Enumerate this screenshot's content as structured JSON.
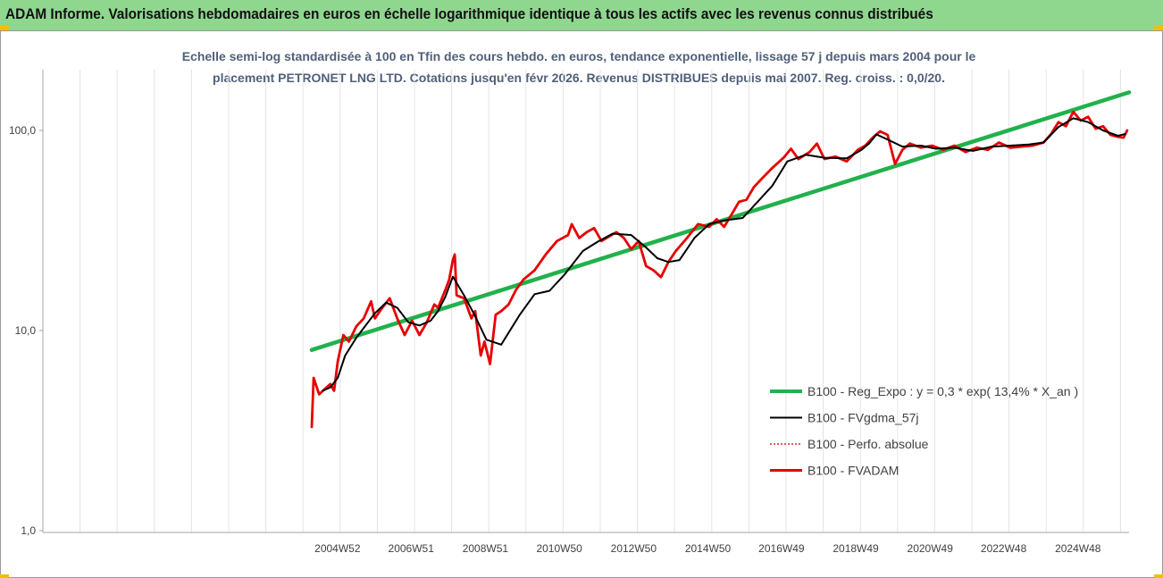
{
  "banner": {
    "title": "ADAM Informe. Valorisations hebdomadaires en euros en échelle logarithmique identique à tous les actifs avec les revenus connus distribués"
  },
  "colors": {
    "banner_bg": "#8fd68f",
    "regression": "#22b14c",
    "fvgdma": "#000000",
    "perfo": "#c00000",
    "fvadam": "#e60000",
    "subtitle": "#50607a"
  },
  "chart_data": {
    "type": "line",
    "title_line1": "Echelle semi-log standardisée à 100 en Tfin des cours hebdo. en euros, tendance exponentielle, lissage 57 j depuis mars 2004 pour le",
    "title_line2": "placement PETRONET LNG LTD. Cotations jusqu'en févr 2026.  Revenus DISTRIBUES depuis mai 2007. Reg. croiss. : 0,0/20.",
    "y_scale": "log",
    "ylim": [
      1,
      200
    ],
    "xlim": [
      2000.0,
      2026.2
    ],
    "y_ticks": [
      {
        "label": "1,0",
        "value": 1
      },
      {
        "label": "10,0",
        "value": 10
      },
      {
        "label": "100,0",
        "value": 100
      }
    ],
    "x_ticks": [
      {
        "label": "2004W52",
        "value": 2004.99
      },
      {
        "label": "2006W51",
        "value": 2006.97
      },
      {
        "label": "2008W51",
        "value": 2008.97
      },
      {
        "label": "2010W50",
        "value": 2010.96
      },
      {
        "label": "2012W50",
        "value": 2012.96
      },
      {
        "label": "2014W50",
        "value": 2014.96
      },
      {
        "label": "2016W49",
        "value": 2016.94
      },
      {
        "label": "2018W49",
        "value": 2018.94
      },
      {
        "label": "2020W49",
        "value": 2020.94
      },
      {
        "label": "2022W48",
        "value": 2022.92
      },
      {
        "label": "2024W48",
        "value": 2024.92
      }
    ],
    "grid": "vertical",
    "legend_position": "right-center",
    "series": [
      {
        "name": "B100 - Reg_Expo : y = 0,3 * exp( 13,4% *  X_an )",
        "key": "regression",
        "x": [
          2004.2,
          2026.2
        ],
        "y": [
          8.0,
          155.0
        ]
      },
      {
        "name": "B100 - FVgdma_57j",
        "key": "fvgdma",
        "x": [
          2004.5,
          2004.7,
          2004.9,
          2005.1,
          2005.4,
          2005.6,
          2005.9,
          2006.2,
          2006.5,
          2006.8,
          2007.1,
          2007.4,
          2007.6,
          2007.8,
          2008.0,
          2008.3,
          2008.6,
          2008.9,
          2009.3,
          2009.8,
          2010.2,
          2010.6,
          2011.0,
          2011.5,
          2011.9,
          2012.3,
          2012.8,
          2013.2,
          2013.5,
          2013.8,
          2014.1,
          2014.5,
          2014.9,
          2015.3,
          2015.8,
          2016.2,
          2016.6,
          2017.0,
          2017.5,
          2018.0,
          2018.6,
          2019.0,
          2019.2,
          2019.4,
          2019.7,
          2020.1,
          2020.6,
          2021.0,
          2021.5,
          2022.0,
          2022.5,
          2023.0,
          2023.5,
          2023.9,
          2024.3,
          2024.7,
          2025.1,
          2025.5,
          2025.9,
          2026.1
        ],
        "y": [
          5.0,
          5.2,
          5.8,
          7.5,
          9.2,
          10.3,
          12.2,
          13.8,
          13.0,
          11.0,
          10.6,
          11.2,
          12.5,
          14.8,
          18.6,
          15.0,
          11.8,
          9.0,
          8.5,
          12.0,
          15.2,
          15.8,
          19.0,
          25.0,
          27.8,
          30.5,
          30.0,
          26.0,
          23.0,
          22.0,
          22.5,
          29.0,
          34.0,
          35.5,
          36.5,
          44.0,
          53.0,
          70.0,
          75.5,
          73.0,
          72.5,
          80.0,
          86.0,
          95.5,
          90.0,
          83.0,
          84.0,
          81.0,
          82.0,
          79.0,
          83.0,
          84.0,
          85.0,
          87.0,
          104.0,
          115.0,
          110.0,
          100.0,
          94.0,
          96.0
        ]
      },
      {
        "name": "B100 - Perfo. absolue",
        "key": "perfo",
        "x": [],
        "y": []
      },
      {
        "name": "B100 - FVADAM",
        "key": "fvadam",
        "x": [
          2004.2,
          2004.25,
          2004.4,
          2004.5,
          2004.7,
          2004.8,
          2004.9,
          2005.05,
          2005.2,
          2005.4,
          2005.6,
          2005.8,
          2005.9,
          2006.1,
          2006.3,
          2006.5,
          2006.7,
          2006.9,
          2007.1,
          2007.3,
          2007.5,
          2007.6,
          2007.8,
          2007.9,
          2008.0,
          2008.05,
          2008.1,
          2008.3,
          2008.5,
          2008.6,
          2008.75,
          2008.85,
          2009.0,
          2009.15,
          2009.3,
          2009.5,
          2009.7,
          2009.9,
          2010.2,
          2010.5,
          2010.8,
          2011.1,
          2011.2,
          2011.4,
          2011.6,
          2011.8,
          2012.0,
          2012.2,
          2012.4,
          2012.6,
          2012.8,
          2013.0,
          2013.2,
          2013.4,
          2013.6,
          2013.8,
          2014.0,
          2014.3,
          2014.6,
          2014.9,
          2015.1,
          2015.3,
          2015.5,
          2015.7,
          2015.9,
          2016.1,
          2016.3,
          2016.6,
          2016.9,
          2017.1,
          2017.3,
          2017.6,
          2017.8,
          2018.0,
          2018.3,
          2018.6,
          2018.9,
          2019.1,
          2019.3,
          2019.5,
          2019.7,
          2019.9,
          2020.1,
          2020.3,
          2020.6,
          2020.9,
          2021.2,
          2021.5,
          2021.8,
          2022.1,
          2022.4,
          2022.7,
          2023.0,
          2023.3,
          2023.6,
          2023.9,
          2024.1,
          2024.3,
          2024.5,
          2024.7,
          2024.9,
          2025.1,
          2025.3,
          2025.5,
          2025.7,
          2025.9,
          2026.05,
          2026.15
        ],
        "y": [
          3.3,
          5.8,
          4.8,
          5.0,
          5.4,
          5.0,
          7.0,
          9.5,
          8.8,
          10.5,
          11.5,
          14.0,
          11.5,
          13.0,
          14.5,
          11.5,
          9.5,
          11.2,
          9.5,
          11.0,
          13.5,
          13.0,
          16.0,
          18.0,
          22.5,
          24.0,
          15.0,
          14.5,
          11.5,
          12.5,
          7.5,
          8.8,
          6.8,
          12.0,
          12.5,
          13.5,
          16.0,
          18.0,
          20.0,
          24.0,
          28.0,
          30.0,
          34.0,
          29.0,
          31.0,
          32.5,
          28.0,
          29.5,
          31.0,
          29.0,
          25.5,
          28.0,
          21.0,
          20.0,
          18.5,
          22.0,
          25.0,
          29.0,
          34.0,
          33.0,
          36.0,
          33.0,
          38.0,
          44.0,
          45.0,
          52.0,
          57.0,
          65.0,
          73.0,
          81.0,
          72.0,
          78.0,
          86.0,
          72.0,
          74.0,
          70.0,
          80.0,
          84.0,
          92.0,
          99.0,
          95.0,
          68.0,
          80.0,
          86.0,
          82.0,
          84.0,
          80.0,
          84.0,
          78.0,
          82.0,
          80.0,
          87.0,
          82.0,
          83.0,
          84.0,
          87.0,
          96.0,
          110.0,
          105.0,
          124.0,
          112.0,
          117.0,
          102.0,
          105.0,
          95.0,
          93.0,
          92.0,
          100.0
        ]
      }
    ]
  }
}
